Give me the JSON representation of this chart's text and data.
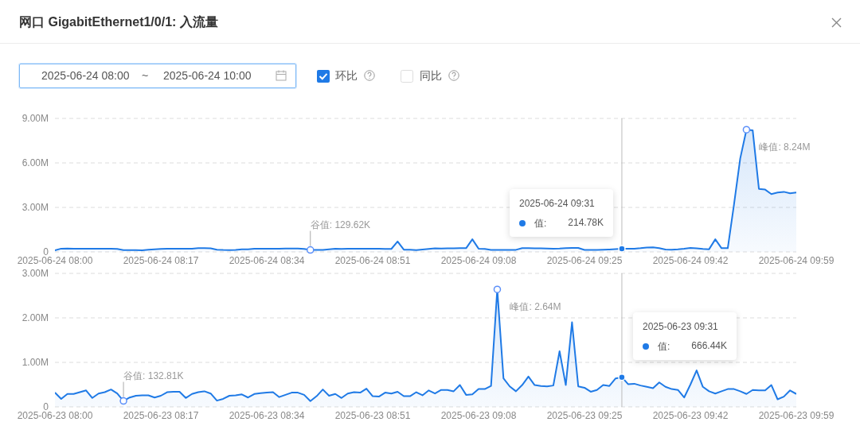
{
  "chart_data": [
    {
      "type": "area",
      "title": "网口 GigabitEthernet1/0/1: 入流量",
      "x": [
        "2025-06-24T08:00",
        "2025-06-24T08:01",
        "2025-06-24T08:02",
        "2025-06-24T08:03",
        "2025-06-24T08:04",
        "2025-06-24T08:05",
        "2025-06-24T08:06",
        "2025-06-24T08:07",
        "2025-06-24T08:08",
        "2025-06-24T08:09",
        "2025-06-24T08:10",
        "2025-06-24T08:11",
        "2025-06-24T08:12",
        "2025-06-24T08:13",
        "2025-06-24T08:14",
        "2025-06-24T08:15",
        "2025-06-24T08:16",
        "2025-06-24T08:17",
        "2025-06-24T08:18",
        "2025-06-24T08:19",
        "2025-06-24T08:20",
        "2025-06-24T08:21",
        "2025-06-24T08:22",
        "2025-06-24T08:23",
        "2025-06-24T08:24",
        "2025-06-24T08:25",
        "2025-06-24T08:26",
        "2025-06-24T08:27",
        "2025-06-24T08:28",
        "2025-06-24T08:29",
        "2025-06-24T08:30",
        "2025-06-24T08:31",
        "2025-06-24T08:32",
        "2025-06-24T08:33",
        "2025-06-24T08:34",
        "2025-06-24T08:35",
        "2025-06-24T08:36",
        "2025-06-24T08:37",
        "2025-06-24T08:38",
        "2025-06-24T08:39",
        "2025-06-24T08:40",
        "2025-06-24T08:41",
        "2025-06-24T08:42",
        "2025-06-24T08:43",
        "2025-06-24T08:44",
        "2025-06-24T08:45",
        "2025-06-24T08:46",
        "2025-06-24T08:47",
        "2025-06-24T08:48",
        "2025-06-24T08:49",
        "2025-06-24T08:50",
        "2025-06-24T08:51",
        "2025-06-24T08:52",
        "2025-06-24T08:53",
        "2025-06-24T08:54",
        "2025-06-24T08:55",
        "2025-06-24T08:56",
        "2025-06-24T08:57",
        "2025-06-24T08:58",
        "2025-06-24T08:59",
        "2025-06-24T09:00",
        "2025-06-24T09:01",
        "2025-06-24T09:02",
        "2025-06-24T09:03",
        "2025-06-24T09:04",
        "2025-06-24T09:05",
        "2025-06-24T09:06",
        "2025-06-24T09:07",
        "2025-06-24T09:08",
        "2025-06-24T09:09",
        "2025-06-24T09:10",
        "2025-06-24T09:11",
        "2025-06-24T09:12",
        "2025-06-24T09:13",
        "2025-06-24T09:14",
        "2025-06-24T09:15",
        "2025-06-24T09:16",
        "2025-06-24T09:17",
        "2025-06-24T09:18",
        "2025-06-24T09:19",
        "2025-06-24T09:20",
        "2025-06-24T09:21",
        "2025-06-24T09:22",
        "2025-06-24T09:23",
        "2025-06-24T09:24",
        "2025-06-24T09:25",
        "2025-06-24T09:26",
        "2025-06-24T09:27",
        "2025-06-24T09:28",
        "2025-06-24T09:29",
        "2025-06-24T09:30",
        "2025-06-24T09:31",
        "2025-06-24T09:32",
        "2025-06-24T09:33",
        "2025-06-24T09:34",
        "2025-06-24T09:35",
        "2025-06-24T09:36",
        "2025-06-24T09:37",
        "2025-06-24T09:38",
        "2025-06-24T09:39",
        "2025-06-24T09:40",
        "2025-06-24T09:41",
        "2025-06-24T09:42",
        "2025-06-24T09:43",
        "2025-06-24T09:44",
        "2025-06-24T09:45",
        "2025-06-24T09:46",
        "2025-06-24T09:47",
        "2025-06-24T09:48",
        "2025-06-24T09:49",
        "2025-06-24T09:50",
        "2025-06-24T09:51",
        "2025-06-24T09:52",
        "2025-06-24T09:53",
        "2025-06-24T09:54",
        "2025-06-24T09:55",
        "2025-06-24T09:56",
        "2025-06-24T09:57",
        "2025-06-24T09:58",
        "2025-06-24T09:59"
      ],
      "series": [
        {
          "color": "#1f7ae6",
          "values": [
            0.1,
            0.22,
            0.23,
            0.22,
            0.21,
            0.22,
            0.21,
            0.22,
            0.21,
            0.22,
            0.2,
            0.12,
            0.12,
            0.12,
            0.11,
            0.15,
            0.18,
            0.2,
            0.21,
            0.22,
            0.21,
            0.21,
            0.22,
            0.25,
            0.26,
            0.24,
            0.15,
            0.13,
            0.12,
            0.13,
            0.18,
            0.18,
            0.21,
            0.22,
            0.22,
            0.22,
            0.22,
            0.23,
            0.23,
            0.23,
            0.2,
            0.12962,
            0.13,
            0.14,
            0.18,
            0.22,
            0.2,
            0.21,
            0.21,
            0.21,
            0.22,
            0.21,
            0.21,
            0.2,
            0.2,
            0.7,
            0.15,
            0.15,
            0.12,
            0.16,
            0.2,
            0.24,
            0.23,
            0.24,
            0.24,
            0.25,
            0.25,
            0.85,
            0.22,
            0.2,
            0.13,
            0.13,
            0.13,
            0.13,
            0.14,
            0.25,
            0.25,
            0.24,
            0.24,
            0.23,
            0.22,
            0.23,
            0.25,
            0.27,
            0.27,
            0.13,
            0.13,
            0.13,
            0.15,
            0.16,
            0.19,
            0.21478,
            0.22,
            0.22,
            0.25,
            0.3,
            0.31,
            0.25,
            0.16,
            0.15,
            0.18,
            0.22,
            0.27,
            0.24,
            0.2,
            0.18,
            0.85,
            0.25,
            0.25,
            3.2,
            6.3,
            8.24,
            8.2,
            4.25,
            4.2,
            3.9,
            4.0,
            4.05,
            3.95,
            4.0
          ]
        }
      ],
      "xlim": [
        "2025-06-24T08:00",
        "2025-06-24T09:59"
      ],
      "xticks": [
        {
          "value": "2025-06-24T08:00",
          "label": "2025-06-24 08:00"
        },
        {
          "value": "2025-06-24T08:17",
          "label": "2025-06-24 08:17"
        },
        {
          "value": "2025-06-24T08:34",
          "label": "2025-06-24 08:34"
        },
        {
          "value": "2025-06-24T08:51",
          "label": "2025-06-24 08:51"
        },
        {
          "value": "2025-06-24T09:08",
          "label": "2025-06-24 09:08"
        },
        {
          "value": "2025-06-24T09:25",
          "label": "2025-06-24 09:25"
        },
        {
          "value": "2025-06-24T09:42",
          "label": "2025-06-24 09:42"
        },
        {
          "value": "2025-06-24T09:59",
          "label": "2025-06-24 09:59"
        }
      ],
      "ylim": [
        0,
        9
      ],
      "yticks": [
        0,
        {
          "value": 3,
          "label": "3.00M"
        },
        {
          "value": 6,
          "label": "6.00M"
        },
        {
          "value": 9,
          "label": "9.00M"
        }
      ],
      "grid": "y",
      "ref_lines": [
        {
          "axis": "x",
          "value": "2025-06-24T09:31",
          "color": "#bbbbbb"
        }
      ],
      "annotations": [
        "2025-06-24 08:00",
        "~",
        "2025-06-24 10:00",
        "环比",
        "同比",
        {
          "text": "谷值: 129.62K",
          "x": "2025-06-24T08:41",
          "y": 0.12962
        },
        {
          "text": "峰值: 8.24M",
          "x": "2025-06-24T09:51",
          "y": 8.24
        },
        "2025-06-24 09:31",
        "值:",
        "214.78K"
      ]
    },
    {
      "type": "area",
      "x": [
        "2025-06-23T08:00",
        "2025-06-23T08:01",
        "2025-06-23T08:02",
        "2025-06-23T08:03",
        "2025-06-23T08:04",
        "2025-06-23T08:05",
        "2025-06-23T08:06",
        "2025-06-23T08:07",
        "2025-06-23T08:08",
        "2025-06-23T08:09",
        "2025-06-23T08:10",
        "2025-06-23T08:11",
        "2025-06-23T08:12",
        "2025-06-23T08:13",
        "2025-06-23T08:14",
        "2025-06-23T08:15",
        "2025-06-23T08:16",
        "2025-06-23T08:17",
        "2025-06-23T08:18",
        "2025-06-23T08:19",
        "2025-06-23T08:20",
        "2025-06-23T08:21",
        "2025-06-23T08:22",
        "2025-06-23T08:23",
        "2025-06-23T08:24",
        "2025-06-23T08:25",
        "2025-06-23T08:26",
        "2025-06-23T08:27",
        "2025-06-23T08:28",
        "2025-06-23T08:29",
        "2025-06-23T08:30",
        "2025-06-23T08:31",
        "2025-06-23T08:32",
        "2025-06-23T08:33",
        "2025-06-23T08:34",
        "2025-06-23T08:35",
        "2025-06-23T08:36",
        "2025-06-23T08:37",
        "2025-06-23T08:38",
        "2025-06-23T08:39",
        "2025-06-23T08:40",
        "2025-06-23T08:41",
        "2025-06-23T08:42",
        "2025-06-23T08:43",
        "2025-06-23T08:44",
        "2025-06-23T08:45",
        "2025-06-23T08:46",
        "2025-06-23T08:47",
        "2025-06-23T08:48",
        "2025-06-23T08:49",
        "2025-06-23T08:50",
        "2025-06-23T08:51",
        "2025-06-23T08:52",
        "2025-06-23T08:53",
        "2025-06-23T08:54",
        "2025-06-23T08:55",
        "2025-06-23T08:56",
        "2025-06-23T08:57",
        "2025-06-23T08:58",
        "2025-06-23T08:59",
        "2025-06-23T09:00",
        "2025-06-23T09:01",
        "2025-06-23T09:02",
        "2025-06-23T09:03",
        "2025-06-23T09:04",
        "2025-06-23T09:05",
        "2025-06-23T09:06",
        "2025-06-23T09:07",
        "2025-06-23T09:08",
        "2025-06-23T09:09",
        "2025-06-23T09:10",
        "2025-06-23T09:11",
        "2025-06-23T09:12",
        "2025-06-23T09:13",
        "2025-06-23T09:14",
        "2025-06-23T09:15",
        "2025-06-23T09:16",
        "2025-06-23T09:17",
        "2025-06-23T09:18",
        "2025-06-23T09:19",
        "2025-06-23T09:20",
        "2025-06-23T09:21",
        "2025-06-23T09:22",
        "2025-06-23T09:23",
        "2025-06-23T09:24",
        "2025-06-23T09:25",
        "2025-06-23T09:26",
        "2025-06-23T09:27",
        "2025-06-23T09:28",
        "2025-06-23T09:29",
        "2025-06-23T09:30",
        "2025-06-23T09:31",
        "2025-06-23T09:32",
        "2025-06-23T09:33",
        "2025-06-23T09:34",
        "2025-06-23T09:35",
        "2025-06-23T09:36",
        "2025-06-23T09:37",
        "2025-06-23T09:38",
        "2025-06-23T09:39",
        "2025-06-23T09:40",
        "2025-06-23T09:41",
        "2025-06-23T09:42",
        "2025-06-23T09:43",
        "2025-06-23T09:44",
        "2025-06-23T09:45",
        "2025-06-23T09:46",
        "2025-06-23T09:47",
        "2025-06-23T09:48",
        "2025-06-23T09:49",
        "2025-06-23T09:50",
        "2025-06-23T09:51",
        "2025-06-23T09:52",
        "2025-06-23T09:53",
        "2025-06-23T09:54",
        "2025-06-23T09:55",
        "2025-06-23T09:56",
        "2025-06-23T09:57",
        "2025-06-23T09:58",
        "2025-06-23T09:59"
      ],
      "series": [
        {
          "color": "#1f7ae6",
          "values": [
            0.32,
            0.18,
            0.29,
            0.29,
            0.33,
            0.37,
            0.2,
            0.3,
            0.33,
            0.39,
            0.3,
            0.13281,
            0.21,
            0.25,
            0.26,
            0.26,
            0.21,
            0.25,
            0.33,
            0.34,
            0.34,
            0.2,
            0.29,
            0.33,
            0.35,
            0.3,
            0.14,
            0.18,
            0.25,
            0.26,
            0.28,
            0.21,
            0.29,
            0.31,
            0.32,
            0.33,
            0.22,
            0.27,
            0.32,
            0.32,
            0.27,
            0.13,
            0.24,
            0.39,
            0.25,
            0.29,
            0.2,
            0.3,
            0.33,
            0.32,
            0.41,
            0.24,
            0.23,
            0.32,
            0.3,
            0.34,
            0.24,
            0.24,
            0.33,
            0.26,
            0.37,
            0.3,
            0.38,
            0.38,
            0.35,
            0.49,
            0.27,
            0.28,
            0.4,
            0.4,
            0.47,
            2.64,
            0.64,
            0.46,
            0.35,
            0.49,
            0.68,
            0.49,
            0.47,
            0.46,
            0.48,
            1.25,
            0.49,
            1.9,
            0.46,
            0.43,
            0.34,
            0.38,
            0.49,
            0.47,
            0.64,
            0.66644,
            0.51,
            0.52,
            0.48,
            0.45,
            0.42,
            0.55,
            0.45,
            0.4,
            0.38,
            0.21,
            0.5,
            0.82,
            0.45,
            0.35,
            0.3,
            0.35,
            0.4,
            0.4,
            0.35,
            0.29,
            0.38,
            0.37,
            0.37,
            0.49,
            0.17,
            0.23,
            0.37,
            0.29
          ]
        }
      ],
      "xlim": [
        "2025-06-23T08:00",
        "2025-06-23T09:59"
      ],
      "xticks": [
        {
          "value": "2025-06-23T08:00",
          "label": "2025-06-23 08:00"
        },
        {
          "value": "2025-06-23T08:17",
          "label": "2025-06-23 08:17"
        },
        {
          "value": "2025-06-23T08:34",
          "label": "2025-06-23 08:34"
        },
        {
          "value": "2025-06-23T08:51",
          "label": "2025-06-23 08:51"
        },
        {
          "value": "2025-06-23T09:08",
          "label": "2025-06-23 09:08"
        },
        {
          "value": "2025-06-23T09:25",
          "label": "2025-06-23 09:25"
        },
        {
          "value": "2025-06-23T09:42",
          "label": "2025-06-23 09:42"
        },
        {
          "value": "2025-06-23T09:59",
          "label": "2025-06-23 09:59"
        }
      ],
      "ylim": [
        0,
        3
      ],
      "yticks": [
        0,
        {
          "value": 1,
          "label": "1.00M"
        },
        {
          "value": 2,
          "label": "2.00M"
        },
        {
          "value": 3,
          "label": "3.00M"
        }
      ],
      "grid": "y",
      "ref_lines": [
        {
          "axis": "x",
          "value": "2025-06-23T09:31",
          "color": "#bbbbbb"
        }
      ],
      "annotations": [
        {
          "text": "谷值: 132.81K",
          "x": "2025-06-23T08:11",
          "y": 0.13281
        },
        {
          "text": "峰值: 2.64M",
          "x": "2025-06-23T09:11",
          "y": 2.64
        },
        "2025-06-23 09:31",
        "值:",
        "666.44K"
      ]
    }
  ]
}
